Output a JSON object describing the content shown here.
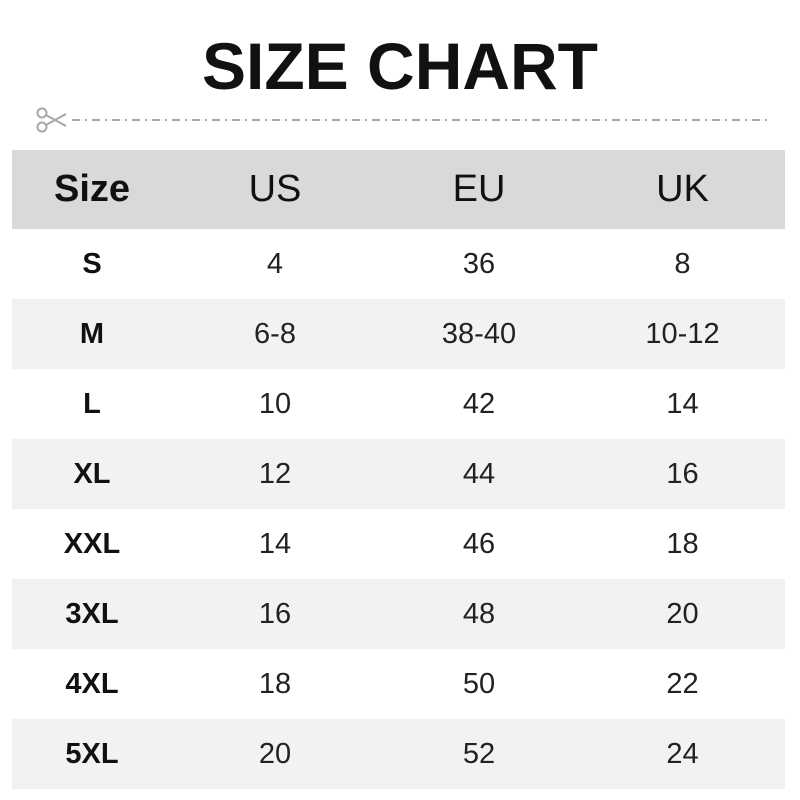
{
  "title": "SIZE CHART",
  "cut_icon": "scissors-icon",
  "colors": {
    "header_bg": "#d9d9d9",
    "alt_row_bg": "#f2f2f2",
    "cutline": "#a8a8a8"
  },
  "chart_data": {
    "type": "table",
    "title": "SIZE CHART",
    "columns": [
      "Size",
      "US",
      "EU",
      "UK"
    ],
    "rows": [
      [
        "S",
        "4",
        "36",
        "8"
      ],
      [
        "M",
        "6-8",
        "38-40",
        "10-12"
      ],
      [
        "L",
        "10",
        "42",
        "14"
      ],
      [
        "XL",
        "12",
        "44",
        "16"
      ],
      [
        "XXL",
        "14",
        "46",
        "18"
      ],
      [
        "3XL",
        "16",
        "48",
        "20"
      ],
      [
        "4XL",
        "18",
        "50",
        "22"
      ],
      [
        "5XL",
        "20",
        "52",
        "24"
      ]
    ]
  }
}
